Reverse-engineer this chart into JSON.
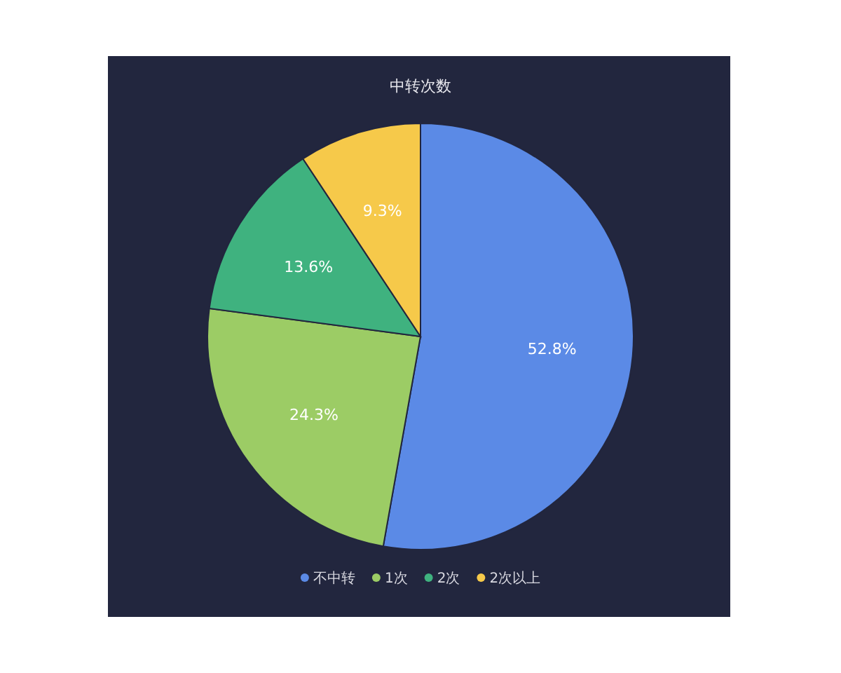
{
  "chart_data": {
    "type": "pie",
    "title": "中转次数",
    "categories": [
      "不中转",
      "1次",
      "2次",
      "2次以上"
    ],
    "values": [
      52.8,
      24.3,
      13.6,
      9.3
    ],
    "colors": [
      "#5b8ae6",
      "#9ccc65",
      "#3fb27f",
      "#f6c94a"
    ],
    "value_labels": [
      "52.8%",
      "24.3%",
      "13.6%",
      "9.3%"
    ],
    "legend": "bottom"
  }
}
